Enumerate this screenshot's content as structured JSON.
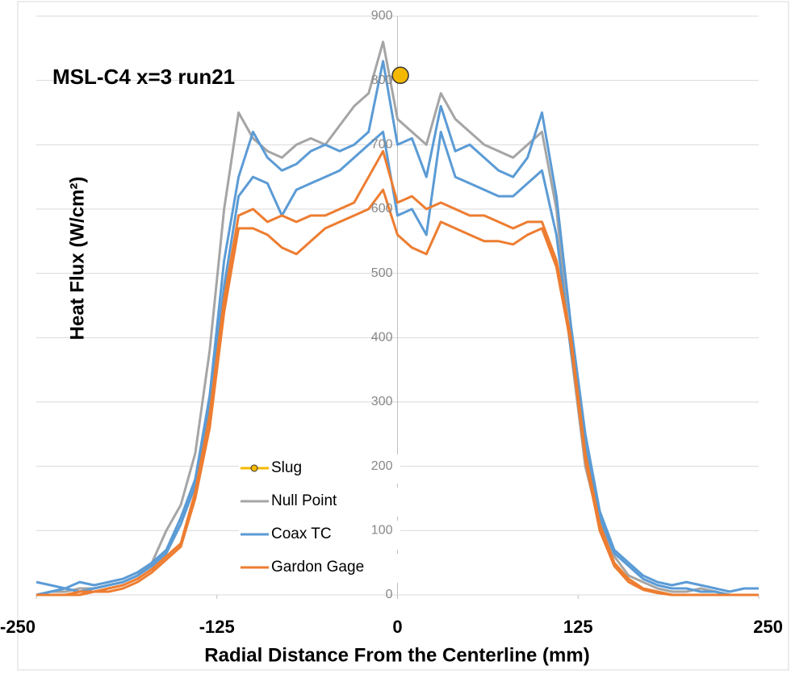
{
  "chart_data": {
    "type": "line",
    "title": "MSL-C4  x=3 run21",
    "xlabel": "Radial Distance From the Centerline (mm)",
    "ylabel": "Heat Flux  (W/cm²)",
    "xlim": [
      -250,
      250
    ],
    "xticks": [
      -250,
      -125,
      0,
      125,
      250
    ],
    "ylim": [
      0,
      900
    ],
    "yticks": [
      0,
      100,
      200,
      300,
      400,
      500,
      600,
      700,
      800,
      900
    ],
    "grid": true,
    "x": [
      -250,
      -240,
      -230,
      -220,
      -210,
      -200,
      -190,
      -180,
      -170,
      -160,
      -150,
      -140,
      -130,
      -120,
      -110,
      -100,
      -90,
      -80,
      -70,
      -60,
      -50,
      -40,
      -30,
      -20,
      -10,
      0,
      10,
      20,
      30,
      40,
      50,
      60,
      70,
      80,
      90,
      100,
      110,
      120,
      130,
      140,
      150,
      160,
      170,
      180,
      190,
      200,
      210,
      220,
      230,
      240,
      250
    ],
    "series": [
      {
        "name": "Slug",
        "color": "#f5b800",
        "marker": "circle",
        "x": [
          2
        ],
        "values": [
          808
        ]
      },
      {
        "name": "Null Point",
        "color": "#a5a5a5",
        "values": [
          0,
          5,
          5,
          10,
          10,
          15,
          20,
          30,
          50,
          100,
          140,
          220,
          380,
          600,
          750,
          710,
          690,
          680,
          700,
          710,
          700,
          730,
          760,
          780,
          860,
          740,
          720,
          700,
          780,
          740,
          720,
          700,
          690,
          680,
          700,
          720,
          600,
          380,
          200,
          110,
          60,
          30,
          20,
          10,
          5,
          5,
          10,
          5,
          0,
          0,
          0
        ]
      },
      {
        "name": "Coax TC",
        "color": "#5b9bd5",
        "values": [
          20,
          15,
          10,
          20,
          15,
          20,
          25,
          35,
          50,
          70,
          120,
          180,
          310,
          520,
          650,
          720,
          680,
          660,
          670,
          690,
          700,
          690,
          700,
          720,
          830,
          700,
          710,
          650,
          760,
          690,
          700,
          680,
          660,
          650,
          680,
          750,
          620,
          420,
          250,
          130,
          70,
          50,
          30,
          20,
          15,
          20,
          15,
          10,
          5,
          10,
          10
        ]
      },
      {
        "color": "#5b9bd5",
        "values": [
          0,
          5,
          10,
          5,
          10,
          15,
          20,
          30,
          45,
          65,
          110,
          170,
          290,
          480,
          620,
          650,
          640,
          590,
          630,
          640,
          650,
          660,
          680,
          700,
          720,
          590,
          600,
          560,
          720,
          650,
          640,
          630,
          620,
          620,
          640,
          660,
          560,
          380,
          230,
          120,
          65,
          45,
          25,
          15,
          10,
          10,
          5,
          5,
          0,
          0,
          0
        ]
      },
      {
        "name": "Gardon Gage",
        "color": "#ed7d31",
        "values": [
          0,
          0,
          0,
          5,
          5,
          10,
          15,
          25,
          40,
          60,
          80,
          160,
          280,
          460,
          590,
          600,
          580,
          590,
          580,
          590,
          590,
          600,
          610,
          650,
          690,
          610,
          620,
          600,
          610,
          600,
          590,
          590,
          580,
          570,
          580,
          580,
          520,
          400,
          220,
          110,
          50,
          25,
          10,
          5,
          0,
          0,
          0,
          0,
          0,
          0,
          0
        ]
      },
      {
        "color": "#ed7d31",
        "values": [
          0,
          0,
          0,
          0,
          5,
          5,
          10,
          20,
          35,
          55,
          75,
          150,
          260,
          440,
          570,
          570,
          560,
          540,
          530,
          550,
          570,
          580,
          590,
          600,
          630,
          560,
          540,
          530,
          580,
          570,
          560,
          550,
          550,
          545,
          560,
          570,
          510,
          390,
          210,
          100,
          45,
          20,
          8,
          3,
          0,
          0,
          0,
          0,
          0,
          0,
          0
        ]
      }
    ]
  }
}
